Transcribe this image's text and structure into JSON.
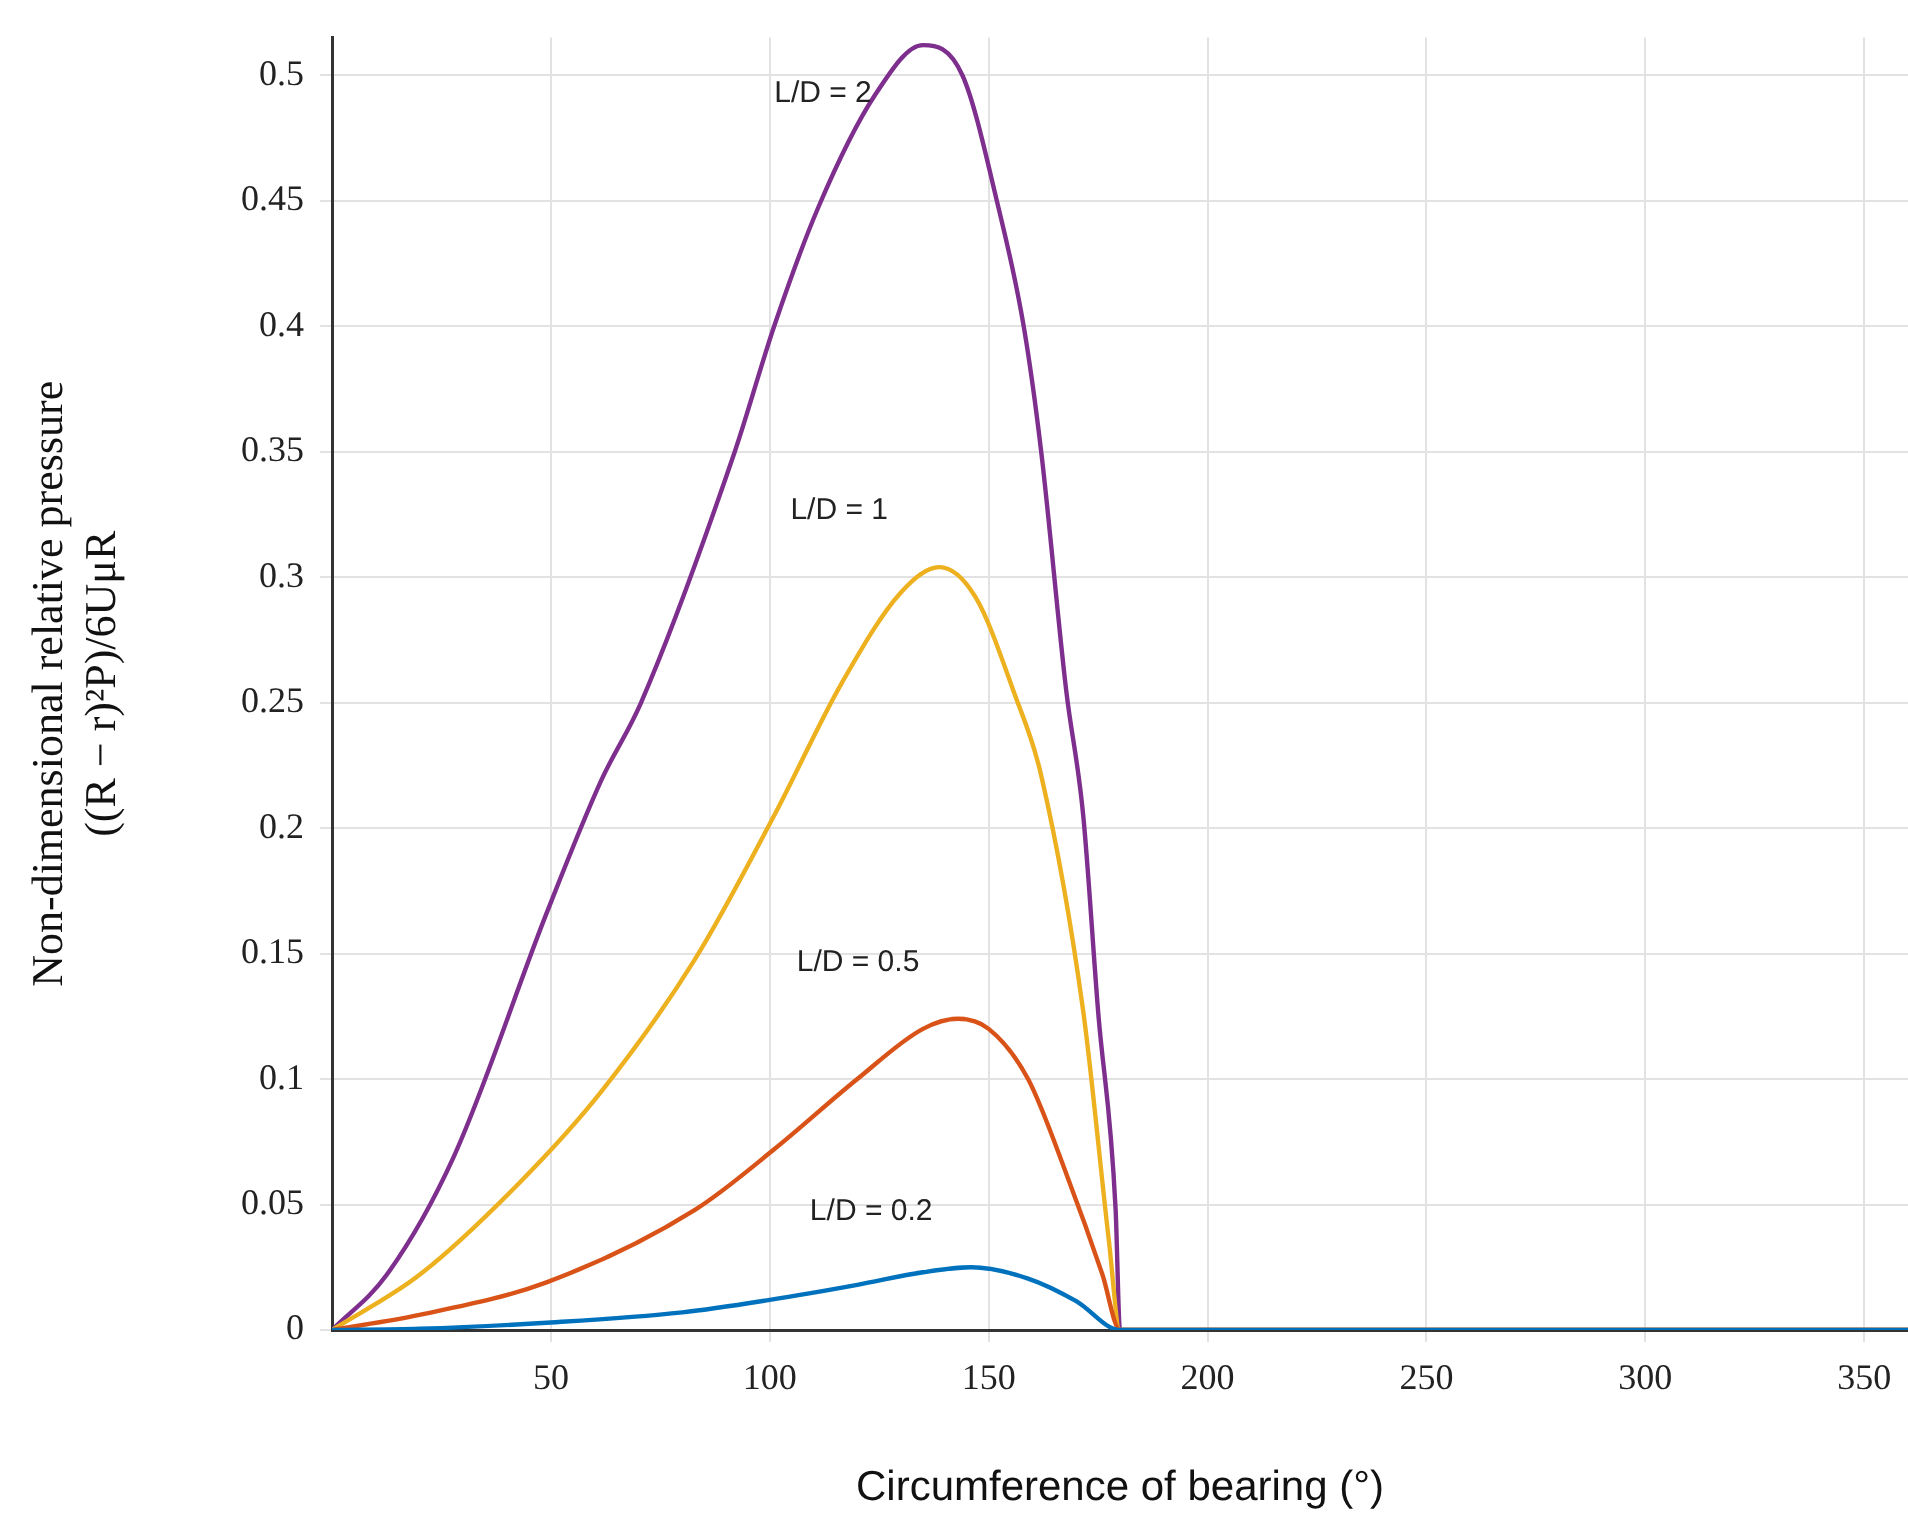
{
  "chart_data": {
    "type": "line",
    "xlabel": "Circumference of bearing (°)",
    "ylabel": "Non-dimensional relative pressure\n((R − r)²P)/6UμR",
    "xlim": [
      0,
      360
    ],
    "xticks": [
      50,
      100,
      150,
      200,
      250,
      300,
      350
    ],
    "ylim": [
      0,
      0.515
    ],
    "yticks": [
      0,
      0.05,
      0.1,
      0.15,
      0.2,
      0.25,
      0.3,
      0.35,
      0.4,
      0.45,
      0.5
    ],
    "grid": true,
    "legend": false,
    "marker": "none",
    "line_style": "solid",
    "series": [
      {
        "name": "L/D = 0.2",
        "color": "#0072bd",
        "x": [
          0,
          20,
          50,
          80,
          100,
          120,
          135,
          146,
          159,
          170,
          180,
          360
        ],
        "values": [
          0,
          0.0005,
          0.003,
          0.007,
          0.012,
          0.018,
          0.023,
          0.025,
          0.0205,
          0.0115,
          0,
          0
        ]
      },
      {
        "name": "L/D = 0.5",
        "color": "#d95319",
        "x": [
          0,
          20,
          49,
          83,
          101,
          120,
          135,
          143,
          150,
          159,
          168,
          176,
          180,
          360
        ],
        "values": [
          0,
          0.006,
          0.019,
          0.048,
          0.072,
          0.1,
          0.12,
          0.124,
          0.12,
          0.1,
          0.061,
          0.022,
          0,
          0
        ]
      },
      {
        "name": "L/D = 1",
        "color": "#edb120",
        "x": [
          0,
          20,
          43,
          61.5,
          83,
          101,
          116.5,
          130,
          138.7,
          147,
          156,
          162,
          171.6,
          177.5,
          180,
          360
        ],
        "values": [
          0,
          0.022,
          0.059,
          0.095,
          0.148,
          0.205,
          0.258,
          0.294,
          0.304,
          0.292,
          0.253,
          0.221,
          0.127,
          0.035,
          0,
          0
        ]
      },
      {
        "name": "L/D = 2",
        "color": "#7e2f8e",
        "x": [
          0,
          12.5,
          27.8,
          49,
          61.5,
          70.6,
          92,
          101,
          111,
          124,
          135,
          144,
          152,
          158,
          162,
          167.7,
          171.6,
          175,
          179,
          180,
          360
        ],
        "values": [
          0,
          0.022,
          0.069,
          0.166,
          0.219,
          0.25,
          0.35,
          0.4,
          0.447,
          0.492,
          0.512,
          0.5,
          0.449,
          0.4,
          0.35,
          0.255,
          0.205,
          0.127,
          0.048,
          0,
          0
        ]
      }
    ]
  }
}
